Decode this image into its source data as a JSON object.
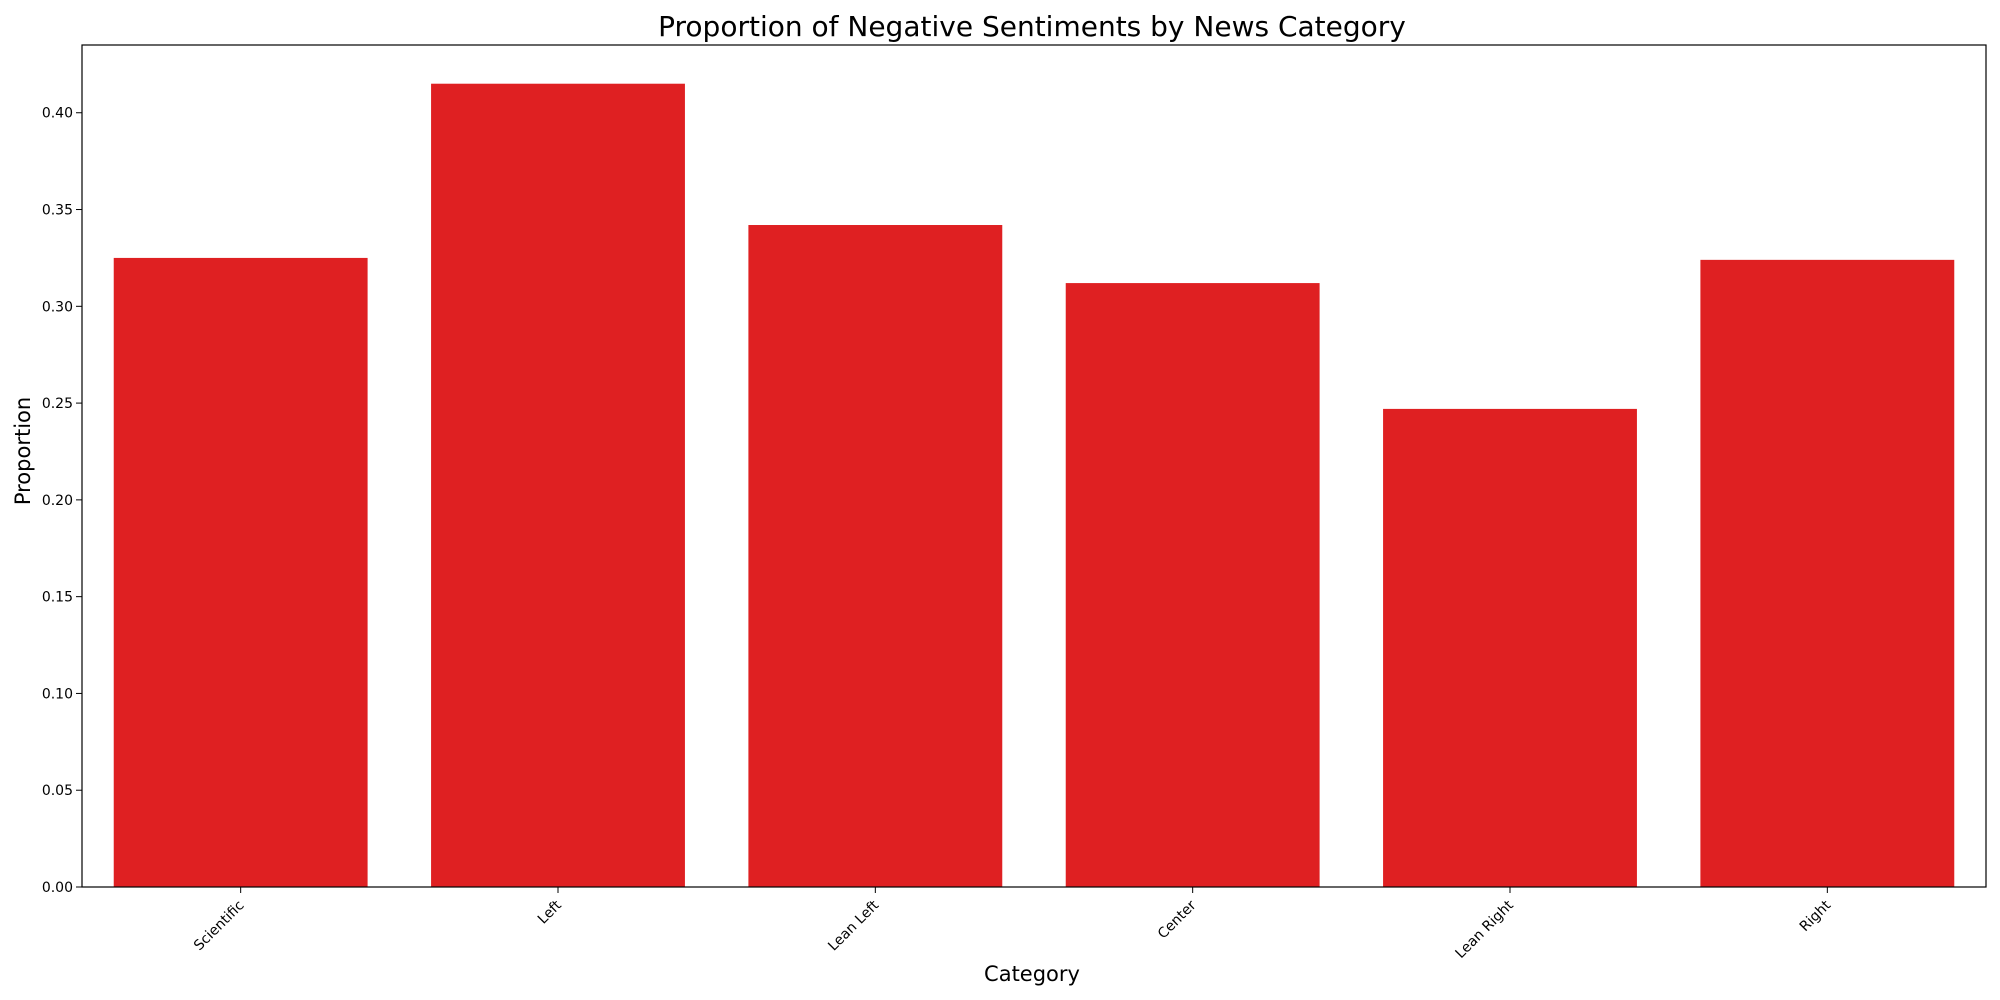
{
  "chart_data": {
    "type": "bar",
    "title": "Proportion of Negative Sentiments by News Category",
    "xlabel": "Category",
    "ylabel": "Proportion",
    "categories": [
      "Scientific",
      "Left",
      "Lean Left",
      "Center",
      "Lean Right",
      "Right"
    ],
    "values": [
      0.325,
      0.415,
      0.342,
      0.312,
      0.247,
      0.324
    ],
    "ylim": [
      0,
      0.435
    ],
    "yticks": [
      "0.00",
      "0.05",
      "0.10",
      "0.15",
      "0.20",
      "0.25",
      "0.30",
      "0.35",
      "0.40"
    ],
    "bar_color": "#df2022",
    "grid": false,
    "legend": "none"
  }
}
